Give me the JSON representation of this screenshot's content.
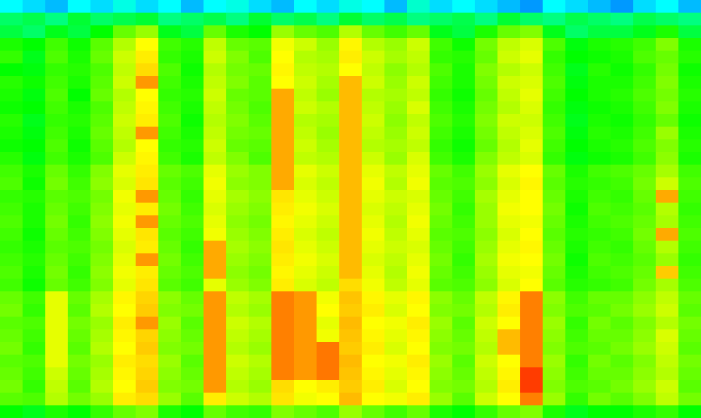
{
  "chart_data": {
    "type": "heatmap",
    "zlim": [
      0,
      100
    ],
    "tick_labels": false,
    "cells": [
      [
        30,
        28,
        26,
        30,
        28,
        32,
        28,
        30,
        26,
        30,
        32,
        28,
        26,
        30,
        28,
        32,
        30,
        26,
        34,
        28,
        30,
        28,
        26,
        24,
        30,
        28,
        26,
        24,
        28,
        30,
        26
      ],
      [
        42,
        44,
        40,
        46,
        42,
        44,
        46,
        40,
        42,
        44,
        40,
        46,
        42,
        44,
        40,
        46,
        42,
        44,
        40,
        42,
        44,
        40,
        46,
        42,
        40,
        44,
        42,
        40,
        44,
        42,
        40
      ],
      [
        45,
        42,
        48,
        45,
        50,
        58,
        62,
        48,
        45,
        58,
        52,
        50,
        62,
        58,
        56,
        64,
        58,
        55,
        58,
        48,
        45,
        52,
        58,
        60,
        48,
        42,
        45,
        45,
        48,
        52,
        45
      ],
      [
        52,
        50,
        55,
        51,
        57,
        64,
        70,
        55,
        53,
        65,
        58,
        57,
        69,
        66,
        62,
        71,
        64,
        62,
        66,
        55,
        51,
        59,
        65,
        67,
        56,
        49,
        52,
        53,
        55,
        60,
        52
      ],
      [
        54,
        48,
        56,
        52,
        58,
        66,
        72,
        54,
        52,
        66,
        60,
        56,
        70,
        64,
        63,
        72,
        66,
        63,
        65,
        54,
        53,
        58,
        66,
        68,
        54,
        50,
        51,
        52,
        56,
        58,
        53
      ],
      [
        50,
        49,
        54,
        53,
        56,
        65,
        74,
        56,
        51,
        64,
        59,
        58,
        71,
        65,
        64,
        70,
        65,
        61,
        64,
        56,
        52,
        60,
        64,
        66,
        55,
        48,
        53,
        51,
        54,
        59,
        51
      ],
      [
        53,
        51,
        55,
        52,
        57,
        66,
        82,
        55,
        52,
        65,
        60,
        57,
        70,
        66,
        63,
        78,
        66,
        62,
        66,
        55,
        52,
        59,
        66,
        67,
        56,
        49,
        52,
        52,
        55,
        60,
        52
      ],
      [
        52,
        49,
        56,
        50,
        58,
        64,
        70,
        54,
        53,
        66,
        58,
        57,
        80,
        65,
        62,
        78,
        64,
        63,
        65,
        54,
        51,
        58,
        65,
        68,
        55,
        50,
        52,
        53,
        56,
        59,
        53
      ],
      [
        51,
        50,
        55,
        52,
        56,
        65,
        71,
        55,
        52,
        65,
        59,
        56,
        80,
        66,
        64,
        78,
        65,
        62,
        67,
        55,
        52,
        59,
        64,
        67,
        54,
        49,
        51,
        52,
        55,
        60,
        52
      ],
      [
        53,
        48,
        54,
        53,
        57,
        66,
        72,
        56,
        51,
        64,
        60,
        57,
        80,
        64,
        63,
        78,
        66,
        61,
        65,
        56,
        53,
        60,
        66,
        66,
        55,
        48,
        52,
        51,
        54,
        58,
        51
      ],
      [
        52,
        49,
        55,
        52,
        58,
        65,
        82,
        55,
        52,
        65,
        59,
        58,
        80,
        65,
        62,
        78,
        65,
        62,
        66,
        55,
        52,
        59,
        65,
        67,
        56,
        49,
        53,
        52,
        55,
        62,
        52
      ],
      [
        51,
        50,
        56,
        51,
        57,
        64,
        70,
        54,
        53,
        66,
        58,
        57,
        80,
        66,
        63,
        78,
        64,
        63,
        65,
        54,
        51,
        58,
        64,
        68,
        55,
        50,
        52,
        53,
        56,
        60,
        53
      ],
      [
        53,
        49,
        55,
        52,
        56,
        66,
        71,
        55,
        52,
        65,
        60,
        56,
        80,
        65,
        64,
        78,
        66,
        62,
        67,
        55,
        52,
        60,
        65,
        67,
        54,
        49,
        51,
        52,
        55,
        61,
        52
      ],
      [
        55,
        52,
        58,
        54,
        60,
        68,
        72,
        58,
        56,
        68,
        62,
        60,
        80,
        68,
        66,
        78,
        68,
        65,
        68,
        58,
        55,
        62,
        68,
        70,
        58,
        52,
        55,
        56,
        58,
        63,
        55
      ],
      [
        56,
        51,
        59,
        55,
        61,
        67,
        73,
        57,
        55,
        69,
        61,
        60,
        80,
        67,
        65,
        78,
        69,
        64,
        69,
        57,
        56,
        61,
        67,
        71,
        57,
        53,
        54,
        55,
        59,
        66,
        56
      ],
      [
        54,
        53,
        57,
        56,
        59,
        69,
        82,
        58,
        54,
        68,
        63,
        61,
        73,
        68,
        66,
        78,
        68,
        66,
        67,
        58,
        55,
        63,
        68,
        70,
        58,
        52,
        55,
        54,
        58,
        80,
        55
      ],
      [
        55,
        52,
        58,
        55,
        60,
        68,
        72,
        59,
        55,
        67,
        62,
        60,
        72,
        69,
        67,
        78,
        67,
        65,
        68,
        59,
        54,
        62,
        69,
        70,
        59,
        51,
        56,
        55,
        57,
        64,
        54
      ],
      [
        56,
        52,
        59,
        54,
        61,
        69,
        82,
        58,
        56,
        68,
        61,
        59,
        71,
        68,
        66,
        78,
        68,
        64,
        69,
        58,
        55,
        62,
        68,
        69,
        58,
        52,
        55,
        56,
        58,
        63,
        55
      ],
      [
        55,
        51,
        58,
        55,
        60,
        68,
        73,
        57,
        55,
        69,
        62,
        60,
        72,
        67,
        65,
        78,
        69,
        65,
        68,
        57,
        56,
        61,
        67,
        70,
        57,
        53,
        54,
        55,
        59,
        80,
        56
      ],
      [
        54,
        52,
        57,
        56,
        59,
        67,
        72,
        58,
        54,
        80,
        63,
        61,
        73,
        68,
        66,
        78,
        68,
        66,
        67,
        58,
        55,
        62,
        68,
        71,
        58,
        52,
        55,
        54,
        58,
        64,
        55
      ],
      [
        55,
        53,
        58,
        55,
        60,
        68,
        82,
        59,
        55,
        80,
        62,
        60,
        72,
        69,
        67,
        78,
        67,
        65,
        68,
        59,
        54,
        63,
        69,
        70,
        59,
        51,
        56,
        55,
        57,
        62,
        54
      ],
      [
        56,
        52,
        59,
        54,
        61,
        69,
        72,
        58,
        56,
        80,
        61,
        59,
        71,
        68,
        66,
        78,
        68,
        64,
        69,
        58,
        55,
        62,
        68,
        69,
        58,
        52,
        55,
        56,
        58,
        76,
        55
      ],
      [
        55,
        51,
        58,
        55,
        60,
        68,
        73,
        57,
        55,
        68,
        62,
        60,
        72,
        67,
        65,
        74,
        69,
        65,
        68,
        57,
        56,
        61,
        67,
        70,
        57,
        53,
        54,
        55,
        59,
        63,
        56
      ],
      [
        58,
        55,
        68,
        58,
        63,
        71,
        75,
        61,
        58,
        82,
        65,
        63,
        85,
        82,
        69,
        77,
        71,
        68,
        71,
        61,
        58,
        65,
        71,
        85,
        61,
        55,
        58,
        58,
        61,
        65,
        58
      ],
      [
        59,
        54,
        68,
        57,
        64,
        70,
        76,
        60,
        59,
        82,
        64,
        62,
        85,
        82,
        70,
        76,
        72,
        67,
        70,
        60,
        59,
        64,
        72,
        85,
        60,
        56,
        57,
        59,
        62,
        66,
        57
      ],
      [
        57,
        56,
        68,
        59,
        62,
        72,
        82,
        62,
        57,
        82,
        66,
        64,
        85,
        82,
        68,
        78,
        70,
        69,
        72,
        62,
        57,
        66,
        70,
        85,
        62,
        54,
        59,
        57,
        60,
        64,
        59
      ],
      [
        58,
        55,
        68,
        58,
        63,
        71,
        75,
        61,
        58,
        82,
        65,
        63,
        85,
        82,
        69,
        77,
        71,
        68,
        71,
        61,
        58,
        65,
        78,
        85,
        61,
        55,
        58,
        58,
        61,
        67,
        58
      ],
      [
        59,
        54,
        68,
        57,
        64,
        70,
        76,
        60,
        59,
        82,
        64,
        62,
        85,
        82,
        86,
        76,
        72,
        67,
        70,
        60,
        59,
        64,
        78,
        85,
        60,
        56,
        57,
        59,
        62,
        66,
        57
      ],
      [
        57,
        56,
        68,
        59,
        62,
        72,
        74,
        62,
        57,
        82,
        66,
        64,
        85,
        82,
        86,
        78,
        70,
        69,
        72,
        62,
        57,
        66,
        70,
        85,
        62,
        54,
        59,
        57,
        60,
        65,
        59
      ],
      [
        58,
        55,
        66,
        58,
        63,
        71,
        75,
        61,
        58,
        82,
        65,
        63,
        85,
        82,
        86,
        77,
        71,
        68,
        71,
        61,
        58,
        65,
        71,
        93,
        61,
        55,
        58,
        58,
        61,
        64,
        58
      ],
      [
        59,
        54,
        65,
        57,
        64,
        70,
        76,
        60,
        59,
        82,
        64,
        62,
        74,
        70,
        72,
        76,
        72,
        67,
        70,
        60,
        59,
        64,
        72,
        93,
        60,
        56,
        57,
        59,
        62,
        66,
        57
      ],
      [
        57,
        56,
        64,
        59,
        62,
        72,
        74,
        62,
        57,
        72,
        66,
        64,
        73,
        69,
        70,
        78,
        70,
        69,
        72,
        62,
        57,
        66,
        70,
        85,
        62,
        54,
        59,
        57,
        60,
        65,
        59
      ],
      [
        50,
        48,
        52,
        50,
        54,
        58,
        60,
        52,
        50,
        58,
        55,
        54,
        60,
        58,
        56,
        62,
        58,
        55,
        58,
        52,
        50,
        54,
        58,
        60,
        52,
        48,
        50,
        50,
        52,
        54,
        50
      ]
    ]
  }
}
